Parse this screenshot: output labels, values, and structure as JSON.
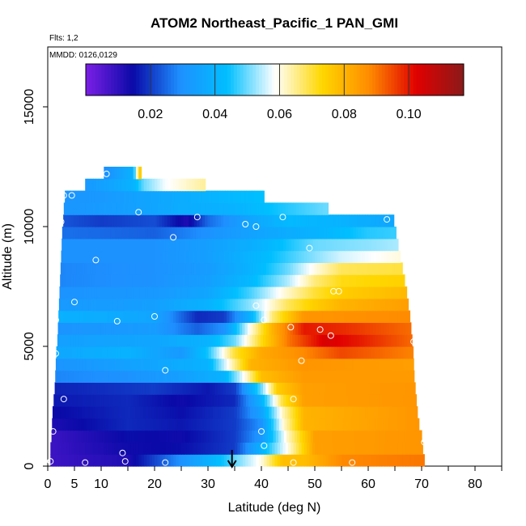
{
  "chart_data": {
    "type": "heatmap",
    "title": "ATOM2 Northeast_Pacific_1 PAN_GMI",
    "annotations": [
      "Flts: 1,2",
      "MMDD: 0126,0129"
    ],
    "xlabel": "Latitude (deg N)",
    "ylabel": "Altitude (m)",
    "xlim": [
      0,
      85
    ],
    "ylim": [
      0,
      17500
    ],
    "x_ticks": [
      0,
      5,
      10,
      20,
      30,
      40,
      50,
      60,
      70,
      80
    ],
    "y_ticks": [
      0,
      5000,
      10000,
      15000
    ],
    "colorbar": {
      "min": 0.0,
      "max": 0.117,
      "ticks": [
        0.02,
        0.04,
        0.06,
        0.08,
        0.1
      ],
      "tick_labels": [
        "0.02",
        "0.04",
        "0.06",
        "0.08",
        "0.10"
      ],
      "colors": [
        "#7c1fe6",
        "#0a0aa8",
        "#1e90ff",
        "#00bfff",
        "#ffffff",
        "#ffd700",
        "#ff8c00",
        "#e00000",
        "#8b1a1a"
      ]
    },
    "altitude_bands": [
      {
        "alt": 250,
        "lat_min": 0.5,
        "lat_max": 70.5,
        "values": [
          [
            0,
            0.008
          ],
          [
            15,
            0.012
          ],
          [
            25,
            0.03
          ],
          [
            33,
            0.045
          ],
          [
            40,
            0.06
          ],
          [
            44,
            0.078
          ],
          [
            48,
            0.078
          ],
          [
            55,
            0.088
          ],
          [
            70,
            0.09
          ]
        ]
      },
      {
        "alt": 750,
        "lat_min": 0.5,
        "lat_max": 70.2,
        "values": [
          [
            0,
            0.008
          ],
          [
            15,
            0.014
          ],
          [
            25,
            0.015
          ],
          [
            35,
            0.02
          ],
          [
            40,
            0.04
          ],
          [
            45,
            0.06
          ],
          [
            50,
            0.084
          ],
          [
            70,
            0.086
          ]
        ]
      },
      {
        "alt": 1250,
        "lat_min": 0.7,
        "lat_max": 70,
        "values": [
          [
            0,
            0.008
          ],
          [
            15,
            0.015
          ],
          [
            25,
            0.014
          ],
          [
            35,
            0.02
          ],
          [
            40,
            0.032
          ],
          [
            45,
            0.062
          ],
          [
            50,
            0.084
          ],
          [
            70,
            0.086
          ]
        ]
      },
      {
        "alt": 1750,
        "lat_min": 0.8,
        "lat_max": 69.5,
        "values": [
          [
            0,
            0.012
          ],
          [
            15,
            0.018
          ],
          [
            25,
            0.016
          ],
          [
            35,
            0.02
          ],
          [
            40,
            0.03
          ],
          [
            44,
            0.06
          ],
          [
            48,
            0.08
          ],
          [
            70,
            0.086
          ]
        ]
      },
      {
        "alt": 2250,
        "lat_min": 0.9,
        "lat_max": 69.2,
        "values": [
          [
            0,
            0.014
          ],
          [
            15,
            0.018
          ],
          [
            25,
            0.015
          ],
          [
            35,
            0.02
          ],
          [
            40,
            0.035
          ],
          [
            44,
            0.062
          ],
          [
            48,
            0.08
          ],
          [
            70,
            0.086
          ]
        ]
      },
      {
        "alt": 2750,
        "lat_min": 1.1,
        "lat_max": 69,
        "values": [
          [
            0,
            0.016
          ],
          [
            15,
            0.018
          ],
          [
            25,
            0.014
          ],
          [
            35,
            0.018
          ],
          [
            40,
            0.04
          ],
          [
            44,
            0.07
          ],
          [
            48,
            0.084
          ],
          [
            70,
            0.086
          ]
        ]
      },
      {
        "alt": 3250,
        "lat_min": 1.3,
        "lat_max": 68.8,
        "values": [
          [
            0,
            0.017
          ],
          [
            20,
            0.02
          ],
          [
            30,
            0.016
          ],
          [
            35,
            0.02
          ],
          [
            40,
            0.05
          ],
          [
            43,
            0.075
          ],
          [
            48,
            0.084
          ],
          [
            70,
            0.086
          ]
        ]
      },
      {
        "alt": 3750,
        "lat_min": 1.4,
        "lat_max": 68.6,
        "values": [
          [
            0,
            0.028
          ],
          [
            15,
            0.03
          ],
          [
            25,
            0.034
          ],
          [
            33,
            0.04
          ],
          [
            37,
            0.06
          ],
          [
            40,
            0.078
          ],
          [
            48,
            0.085
          ],
          [
            70,
            0.085
          ]
        ]
      },
      {
        "alt": 4250,
        "lat_min": 1.5,
        "lat_max": 68.5,
        "values": [
          [
            0,
            0.03
          ],
          [
            20,
            0.036
          ],
          [
            30,
            0.04
          ],
          [
            35,
            0.065
          ],
          [
            38,
            0.08
          ],
          [
            48,
            0.086
          ],
          [
            70,
            0.084
          ]
        ]
      },
      {
        "alt": 4750,
        "lat_min": 1.6,
        "lat_max": 68.4,
        "values": [
          [
            0,
            0.036
          ],
          [
            15,
            0.04
          ],
          [
            25,
            0.032
          ],
          [
            30,
            0.045
          ],
          [
            35,
            0.07
          ],
          [
            40,
            0.082
          ],
          [
            48,
            0.088
          ],
          [
            55,
            0.095
          ],
          [
            70,
            0.088
          ]
        ]
      },
      {
        "alt": 5250,
        "lat_min": 1.8,
        "lat_max": 68.2,
        "values": [
          [
            0,
            0.034
          ],
          [
            20,
            0.036
          ],
          [
            30,
            0.04
          ],
          [
            35,
            0.05
          ],
          [
            40,
            0.072
          ],
          [
            45,
            0.09
          ],
          [
            52,
            0.104
          ],
          [
            58,
            0.1
          ],
          [
            70,
            0.09
          ]
        ]
      },
      {
        "alt": 5750,
        "lat_min": 1.9,
        "lat_max": 68,
        "values": [
          [
            0,
            0.03
          ],
          [
            20,
            0.033
          ],
          [
            28,
            0.024
          ],
          [
            33,
            0.03
          ],
          [
            38,
            0.06
          ],
          [
            42,
            0.08
          ],
          [
            48,
            0.1
          ],
          [
            55,
            0.098
          ],
          [
            70,
            0.09
          ]
        ]
      },
      {
        "alt": 6250,
        "lat_min": 2,
        "lat_max": 67.8,
        "values": [
          [
            0,
            0.04
          ],
          [
            20,
            0.036
          ],
          [
            28,
            0.018
          ],
          [
            33,
            0.02
          ],
          [
            38,
            0.04
          ],
          [
            42,
            0.066
          ],
          [
            48,
            0.086
          ],
          [
            70,
            0.088
          ]
        ]
      },
      {
        "alt": 6750,
        "lat_min": 2.1,
        "lat_max": 67.5,
        "values": [
          [
            0,
            0.032
          ],
          [
            20,
            0.034
          ],
          [
            30,
            0.04
          ],
          [
            38,
            0.052
          ],
          [
            45,
            0.068
          ],
          [
            50,
            0.075
          ],
          [
            55,
            0.08
          ],
          [
            70,
            0.085
          ]
        ]
      },
      {
        "alt": 7250,
        "lat_min": 2.2,
        "lat_max": 67.2,
        "values": [
          [
            0,
            0.03
          ],
          [
            20,
            0.032
          ],
          [
            30,
            0.036
          ],
          [
            38,
            0.048
          ],
          [
            44,
            0.06
          ],
          [
            50,
            0.07
          ],
          [
            55,
            0.075
          ],
          [
            70,
            0.08
          ]
        ]
      },
      {
        "alt": 7750,
        "lat_min": 2.3,
        "lat_max": 66.8,
        "values": [
          [
            0,
            0.028
          ],
          [
            20,
            0.03
          ],
          [
            30,
            0.034
          ],
          [
            38,
            0.042
          ],
          [
            45,
            0.054
          ],
          [
            50,
            0.066
          ],
          [
            55,
            0.072
          ],
          [
            70,
            0.075
          ]
        ]
      },
      {
        "alt": 8250,
        "lat_min": 2.4,
        "lat_max": 66.4,
        "values": [
          [
            0,
            0.028
          ],
          [
            20,
            0.03
          ],
          [
            30,
            0.033
          ],
          [
            38,
            0.04
          ],
          [
            45,
            0.05
          ],
          [
            50,
            0.06
          ],
          [
            55,
            0.068
          ],
          [
            70,
            0.07
          ]
        ]
      },
      {
        "alt": 8750,
        "lat_min": 2.5,
        "lat_max": 66,
        "values": [
          [
            0,
            0.03
          ],
          [
            20,
            0.03
          ],
          [
            30,
            0.034
          ],
          [
            40,
            0.042
          ],
          [
            48,
            0.05
          ],
          [
            55,
            0.056
          ],
          [
            70,
            0.062
          ]
        ]
      },
      {
        "alt": 9250,
        "lat_min": 2.6,
        "lat_max": 65.6,
        "values": [
          [
            0,
            0.03
          ],
          [
            20,
            0.03
          ],
          [
            30,
            0.034
          ],
          [
            40,
            0.04
          ],
          [
            50,
            0.05
          ],
          [
            60,
            0.052
          ],
          [
            70,
            0.055
          ]
        ]
      },
      {
        "alt": 9750,
        "lat_min": 2.7,
        "lat_max": 65.2,
        "values": [
          [
            0,
            0.026
          ],
          [
            20,
            0.024
          ],
          [
            30,
            0.03
          ],
          [
            40,
            0.036
          ],
          [
            50,
            0.04
          ],
          [
            60,
            0.046
          ],
          [
            70,
            0.048
          ]
        ]
      },
      {
        "alt": 10250,
        "lat_min": 2.9,
        "lat_max": 64.8,
        "values": [
          [
            0,
            0.024
          ],
          [
            10,
            0.02
          ],
          [
            20,
            0.022
          ],
          [
            26,
            0.012
          ],
          [
            30,
            0.025
          ],
          [
            38,
            0.036
          ],
          [
            45,
            0.042
          ],
          [
            55,
            0.04
          ],
          [
            65,
            0.036
          ]
        ]
      },
      {
        "alt": 10750,
        "lat_min": 3,
        "lat_max": 52.5,
        "values": [
          [
            0,
            0.03
          ],
          [
            15,
            0.034
          ],
          [
            25,
            0.038
          ],
          [
            35,
            0.04
          ],
          [
            45,
            0.046
          ],
          [
            52,
            0.05
          ]
        ]
      },
      {
        "alt": 11250,
        "lat_min": 3.2,
        "lat_max": 40.5,
        "values": [
          [
            0,
            0.03
          ],
          [
            10,
            0.032
          ],
          [
            20,
            0.036
          ],
          [
            30,
            0.04
          ],
          [
            40,
            0.044
          ]
        ]
      },
      {
        "alt": 11750,
        "lat_min": 7,
        "lat_max": 29.5,
        "values": [
          [
            7,
            0.032
          ],
          [
            12,
            0.036
          ],
          [
            16,
            0.04
          ],
          [
            18,
            0.05
          ],
          [
            22,
            0.058
          ],
          [
            29,
            0.064
          ]
        ]
      },
      {
        "alt": 12250,
        "lat_min": 10.5,
        "lat_max": 17.5,
        "values": [
          [
            10,
            0.028
          ],
          [
            13,
            0.034
          ],
          [
            16,
            0.04
          ],
          [
            17,
            0.07
          ],
          [
            17.5,
            0.08
          ]
        ]
      }
    ],
    "sample_points": [
      [
        0.5,
        200
      ],
      [
        7,
        150
      ],
      [
        14.5,
        200
      ],
      [
        22,
        150
      ],
      [
        46,
        150
      ],
      [
        57,
        150
      ],
      [
        1,
        1450
      ],
      [
        14,
        550
      ],
      [
        40.5,
        850
      ],
      [
        40,
        1450
      ],
      [
        70.5,
        1000
      ],
      [
        3,
        2800
      ],
      [
        46,
        2800
      ],
      [
        22,
        4000
      ],
      [
        47.5,
        4400
      ],
      [
        1.5,
        4700
      ],
      [
        1.5,
        6100
      ],
      [
        13,
        6050
      ],
      [
        20,
        6250
      ],
      [
        40.5,
        6100
      ],
      [
        45.5,
        5800
      ],
      [
        51,
        5700
      ],
      [
        53,
        5450
      ],
      [
        68.5,
        5200
      ],
      [
        5,
        6850
      ],
      [
        39,
        6700
      ],
      [
        53.5,
        7300
      ],
      [
        54.5,
        7300
      ],
      [
        9,
        8600
      ],
      [
        49,
        9100
      ],
      [
        23.5,
        9550
      ],
      [
        2.5,
        10200
      ],
      [
        17,
        10600
      ],
      [
        28,
        10400
      ],
      [
        37,
        10100
      ],
      [
        39,
        10000
      ],
      [
        44,
        10400
      ],
      [
        63.5,
        10300
      ],
      [
        3,
        11300
      ],
      [
        4.5,
        11300
      ],
      [
        11,
        12200
      ]
    ],
    "marker": {
      "lat": 34.5,
      "label": "arrow"
    }
  }
}
